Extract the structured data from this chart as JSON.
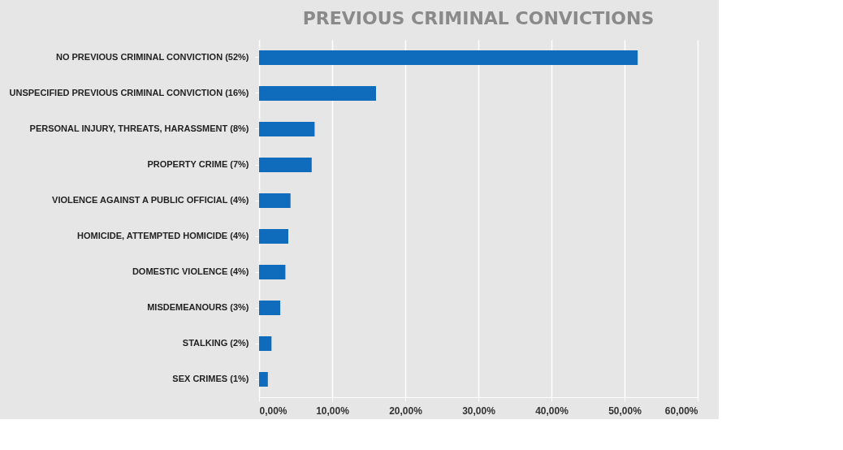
{
  "chart_data": {
    "type": "bar",
    "orientation": "horizontal",
    "title": "PREVIOUS CRIMINAL CONVICTIONS",
    "categories": [
      "NO PREVIOUS CRIMINAL CONVICTION (52%)",
      "UNSPECIFIED PREVIOUS CRIMINAL CONVICTION (16%)",
      "PERSONAL INJURY, THREATS, HARASSMENT  (8%)",
      "PROPERTY CRIME (7%)",
      "VIOLENCE AGAINST A PUBLIC OFFICIAL (4%)",
      "HOMICIDE, ATTEMPTED HOMICIDE (4%)",
      "DOMESTIC VIOLENCE (4%)",
      "MISDEMEANOURS (3%)",
      "STALKING (2%)",
      "SEX CRIMES (1%)"
    ],
    "values": [
      51.8,
      16.0,
      7.6,
      7.2,
      4.3,
      4.0,
      3.6,
      2.9,
      1.7,
      1.2
    ],
    "color": "#0f6cbd",
    "xlim": [
      0,
      60
    ],
    "xticks": [
      {
        "value": 0,
        "label": "0,00%"
      },
      {
        "value": 10,
        "label": "10,00%"
      },
      {
        "value": 20,
        "label": "20,00%"
      },
      {
        "value": 30,
        "label": "30,00%"
      },
      {
        "value": 40,
        "label": "40,00%"
      },
      {
        "value": 50,
        "label": "50,00%"
      },
      {
        "value": 60,
        "label": "60,00%"
      }
    ],
    "grid": "x"
  }
}
